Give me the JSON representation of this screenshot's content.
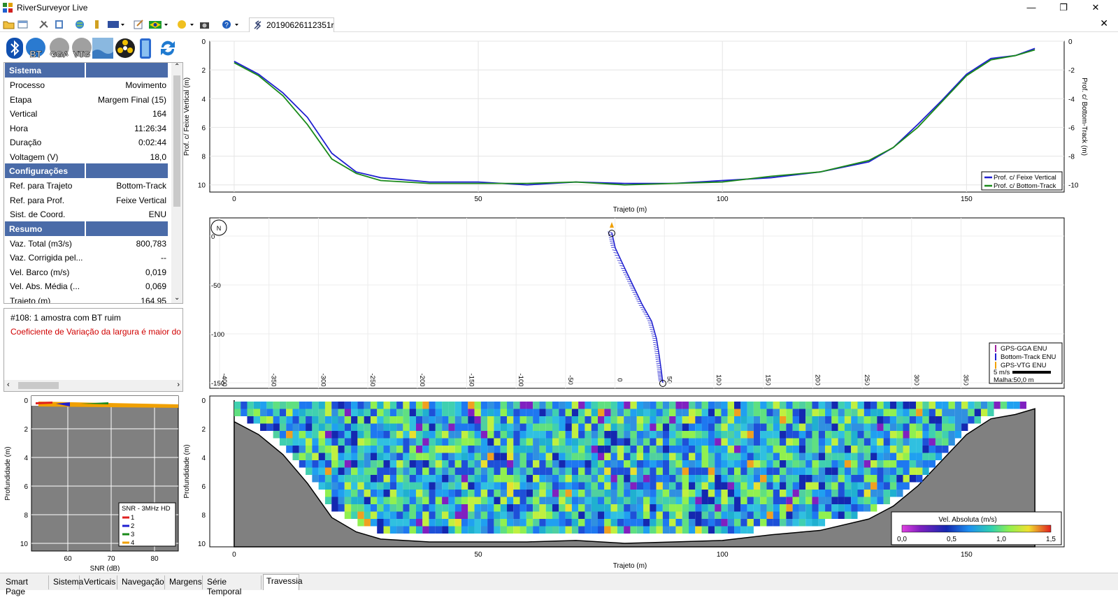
{
  "window": {
    "title": "RiverSurveyor Live",
    "minimize": "—",
    "restore": "❐",
    "close": "✕"
  },
  "toolbar": {
    "document_tab": "20190626112351r",
    "close_doc": "✕"
  },
  "big_icons": {
    "bt": "BT",
    "gga": "GGA",
    "vtg": "VTG"
  },
  "panel": {
    "sections": [
      {
        "title": "Sistema",
        "rows": [
          {
            "k": "Processo",
            "v": "Movimento"
          },
          {
            "k": "Etapa",
            "v": "Margem Final (15)"
          },
          {
            "k": "Vertical",
            "v": "164"
          },
          {
            "k": "Hora",
            "v": "11:26:34"
          },
          {
            "k": "Duração",
            "v": "0:02:44"
          },
          {
            "k": "Voltagem (V)",
            "v": "18,0"
          }
        ]
      },
      {
        "title": "Configurações",
        "rows": [
          {
            "k": "Ref. para Trajeto",
            "v": "Bottom-Track"
          },
          {
            "k": "Ref. para Prof.",
            "v": "Feixe Vertical"
          },
          {
            "k": "Sist. de Coord.",
            "v": "ENU"
          }
        ]
      },
      {
        "title": "Resumo",
        "rows": [
          {
            "k": "Vaz. Total (m3/s)",
            "v": "800,783"
          },
          {
            "k": "Vaz. Corrigida pel...",
            "v": "--"
          },
          {
            "k": "Vel. Barco (m/s)",
            "v": "0,019"
          },
          {
            "k": "Vel. Abs. Média (...",
            "v": "0,069"
          },
          {
            "k": "Trajeto (m)",
            "v": "164,95"
          }
        ]
      }
    ]
  },
  "messages": {
    "line1": "#108: 1 amostra com BT ruim",
    "line2": "Coeficiente de Variação da largura é maior do q",
    "line2_color": "#d00000"
  },
  "depth_chart": {
    "ylabel_left": "Prof. c/ Feixe Vertical (m)",
    "ylabel_right": "Prof. c/ Bottom-Track (m)",
    "xlabel": "Trajeto (m)",
    "legend": [
      "Prof. c/ Feixe Vertical",
      "Prof. c/ Bottom-Track"
    ],
    "colors": [
      "#1f1fd0",
      "#1a8a1a"
    ],
    "yticks": [
      "0",
      "2",
      "4",
      "6",
      "8",
      "10"
    ],
    "yticks_right": [
      "0",
      "-2",
      "-4",
      "-6",
      "-8",
      "-10"
    ],
    "xticks": [
      "0",
      "50",
      "100",
      "150"
    ]
  },
  "chart_data": {
    "type": "line",
    "xlabel": "Trajeto (m)",
    "ylabel": "Prof. c/ Feixe Vertical (m)",
    "xlim": [
      -5,
      170
    ],
    "ylim": [
      10.5,
      0
    ],
    "x": [
      0,
      5,
      10,
      15,
      20,
      25,
      30,
      40,
      50,
      60,
      70,
      80,
      90,
      100,
      110,
      120,
      130,
      135,
      140,
      145,
      150,
      155,
      160,
      164
    ],
    "series": [
      {
        "name": "Prof. c/ Feixe Vertical",
        "values": [
          1.4,
          2.3,
          3.6,
          5.3,
          7.8,
          9.1,
          9.5,
          9.8,
          9.8,
          10.0,
          9.8,
          9.9,
          9.9,
          9.7,
          9.5,
          9.1,
          8.4,
          7.4,
          5.8,
          4.1,
          2.3,
          1.2,
          1.0,
          0.5
        ]
      },
      {
        "name": "Prof. c/ Bottom-Track",
        "values": [
          1.5,
          2.4,
          3.8,
          5.8,
          8.2,
          9.2,
          9.7,
          9.9,
          9.9,
          9.9,
          9.8,
          10.0,
          9.9,
          9.8,
          9.4,
          9.1,
          8.3,
          7.4,
          6.0,
          4.2,
          2.4,
          1.3,
          1.0,
          0.6
        ]
      }
    ]
  },
  "track_chart": {
    "yticks": [
      "0",
      "-50",
      "-100",
      "-150"
    ],
    "xticks": [
      "-400",
      "-350",
      "-300",
      "-250",
      "-200",
      "-150",
      "-100",
      "-50",
      "0",
      "50",
      "100",
      "150",
      "200",
      "250",
      "300",
      "350"
    ],
    "legend": [
      "GPS-GGA ENU",
      "Bottom-Track ENU",
      "GPS-VTG ENU"
    ],
    "legend_colors": [
      "#a020a0",
      "#1f1fd0",
      "#f0a000"
    ],
    "scale_label": "5 m/s",
    "grid_label": "Malha:50,0 m",
    "north": "N"
  },
  "snr_chart": {
    "ylabel": "Profundidade (m)",
    "xlabel": "SNR (dB)",
    "xticks": [
      "60",
      "70",
      "80"
    ],
    "yticks": [
      "0",
      "2",
      "4",
      "6",
      "8",
      "10"
    ],
    "legend_title": "SNR - 3MHz HD",
    "legend": [
      "1",
      "2",
      "3",
      "4"
    ],
    "legend_colors": [
      "#e02020",
      "#1f1fd0",
      "#1a8a1a",
      "#f0a000"
    ]
  },
  "velocity_chart": {
    "ylabel": "Profundidade (m)",
    "xlabel": "Trajeto (m)",
    "yticks": [
      "0",
      "2",
      "4",
      "6",
      "8",
      "10"
    ],
    "xticks": [
      "0",
      "50",
      "100",
      "150"
    ],
    "colorbar_title": "Vel. Absoluta (m/s)",
    "colorbar_ticks": [
      "0,0",
      "0,5",
      "1,0",
      "1,5"
    ]
  },
  "bottom_tabs": [
    "Smart Page",
    "Sistema",
    "Verticais",
    "Navegação",
    "Margens",
    "Série Temporal",
    "Travessia"
  ]
}
